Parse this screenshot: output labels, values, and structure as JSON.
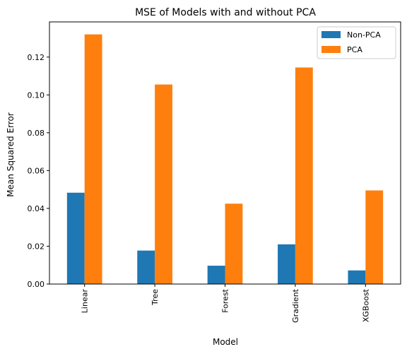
{
  "chart_data": {
    "type": "bar",
    "title": "MSE of Models with and without PCA",
    "xlabel": "Model",
    "ylabel": "Mean Squared Error",
    "categories": [
      "Linear",
      "Tree",
      "Forest",
      "Gradient",
      "XGBoost"
    ],
    "series": [
      {
        "name": "Non-PCA",
        "color": "#1f77b4",
        "values": [
          0.0483,
          0.0177,
          0.0097,
          0.021,
          0.0072
        ]
      },
      {
        "name": "PCA",
        "color": "#ff7f0e",
        "values": [
          0.132,
          0.1055,
          0.0425,
          0.1145,
          0.0495
        ]
      }
    ],
    "ylim": [
      0,
      0.1386
    ],
    "yticks": [
      0.0,
      0.02,
      0.04,
      0.06,
      0.08,
      0.1,
      0.12
    ],
    "ytick_labels": [
      "0.00",
      "0.02",
      "0.04",
      "0.06",
      "0.08",
      "0.10",
      "0.12"
    ],
    "legend_position": "top-right",
    "grid": false
  }
}
